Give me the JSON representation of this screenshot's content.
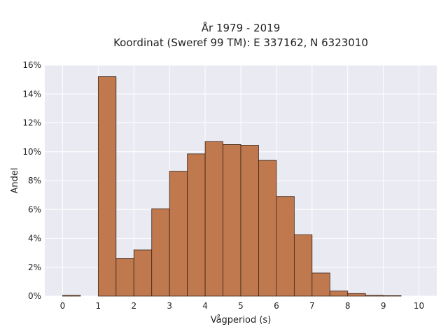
{
  "chart_data": {
    "type": "bar",
    "title_lines": [
      "År 1979 - 2019",
      "Koordinat (Sweref 99 TM): E 337162, N 6323010"
    ],
    "xlabel": "Vågperiod (s)",
    "ylabel": "Andel",
    "xlim": [
      -0.5,
      10.5
    ],
    "ylim": [
      0,
      16
    ],
    "x_ticks": [
      0,
      1,
      2,
      3,
      4,
      5,
      6,
      7,
      8,
      9,
      10
    ],
    "y_ticks": [
      0,
      2,
      4,
      6,
      8,
      10,
      12,
      14,
      16
    ],
    "y_tick_labels": [
      "0%",
      "2%",
      "4%",
      "6%",
      "8%",
      "10%",
      "12%",
      "14%",
      "16%"
    ],
    "bin_width": 0.5,
    "bins": [
      {
        "start": 0.0,
        "value": 0.05
      },
      {
        "start": 0.5,
        "value": 0.0
      },
      {
        "start": 1.0,
        "value": 15.2
      },
      {
        "start": 1.5,
        "value": 2.6
      },
      {
        "start": 2.0,
        "value": 3.2
      },
      {
        "start": 2.5,
        "value": 6.05
      },
      {
        "start": 3.0,
        "value": 8.65
      },
      {
        "start": 3.5,
        "value": 9.85
      },
      {
        "start": 4.0,
        "value": 10.7
      },
      {
        "start": 4.5,
        "value": 10.5
      },
      {
        "start": 5.0,
        "value": 10.45
      },
      {
        "start": 5.5,
        "value": 9.4
      },
      {
        "start": 6.0,
        "value": 6.9
      },
      {
        "start": 6.5,
        "value": 4.25
      },
      {
        "start": 7.0,
        "value": 1.6
      },
      {
        "start": 7.5,
        "value": 0.35
      },
      {
        "start": 8.0,
        "value": 0.18
      },
      {
        "start": 8.5,
        "value": 0.05
      },
      {
        "start": 9.0,
        "value": 0.03
      }
    ],
    "grid": true,
    "colors": {
      "bar_fill": "#c0794f",
      "bar_edge": "#3b2417",
      "plot_background": "#eaeaf2",
      "grid": "#ffffff"
    }
  }
}
